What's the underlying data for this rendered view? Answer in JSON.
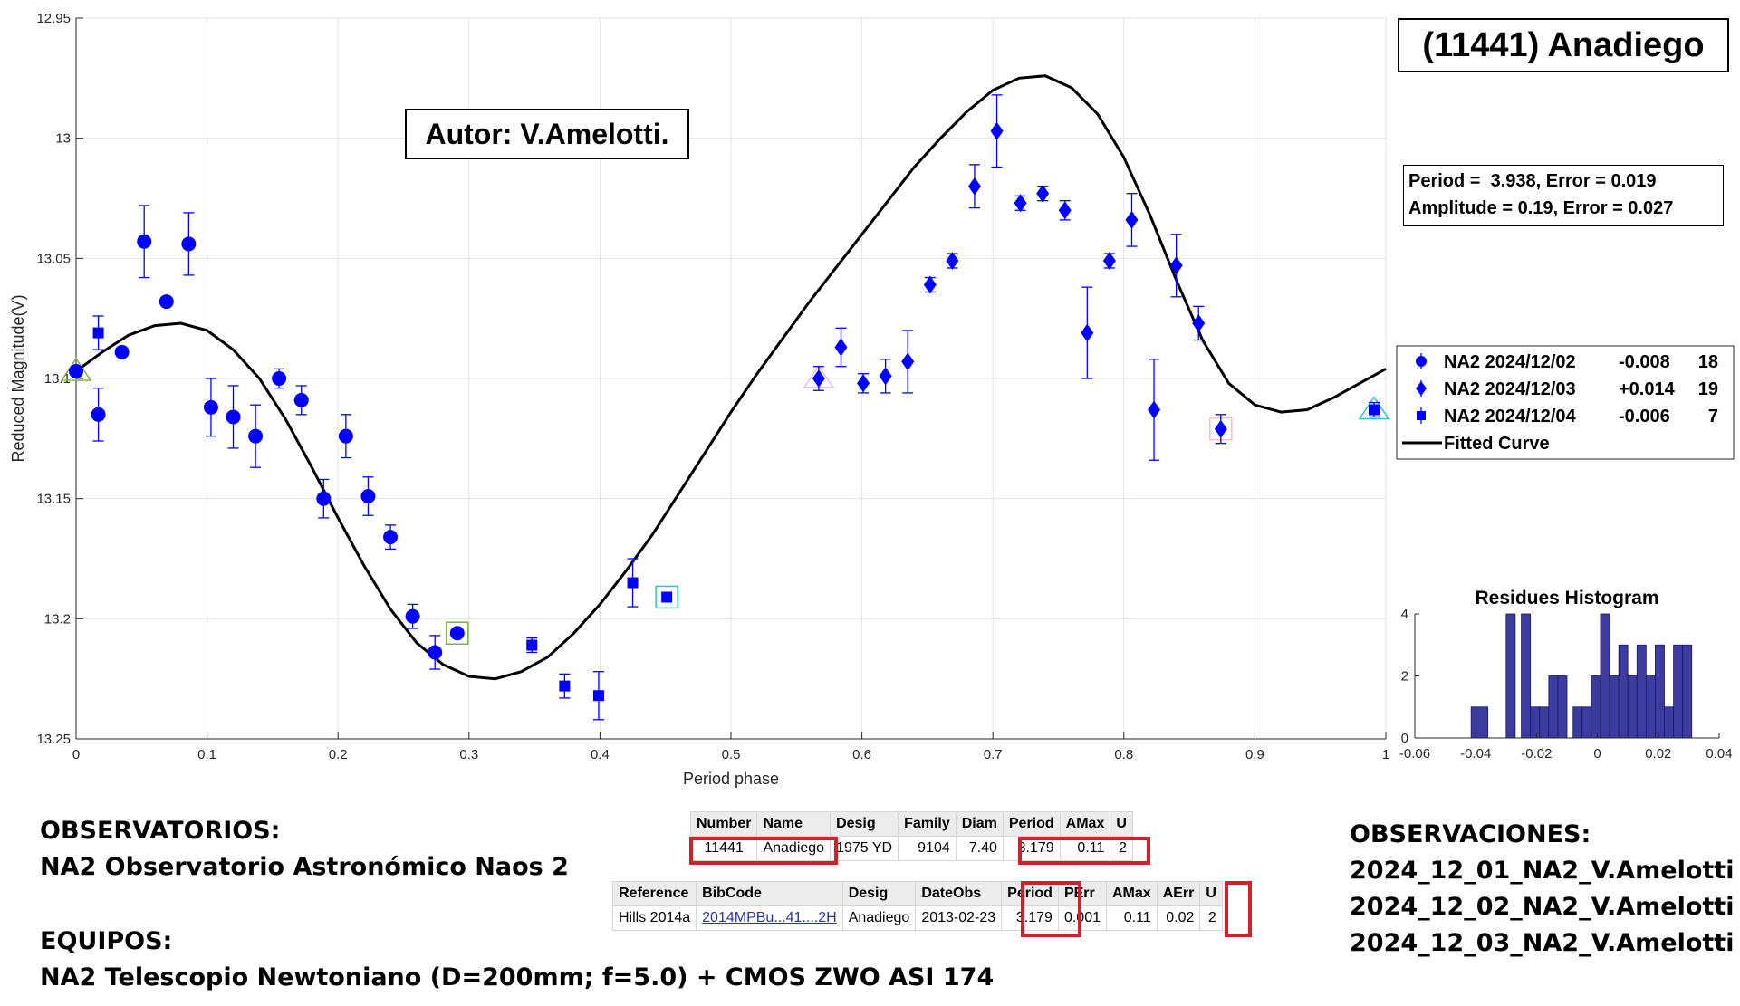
{
  "chart_data": [
    {
      "type": "scatter",
      "title": "",
      "xlabel": "Period phase",
      "ylabel": "Reduced Magnitude(V)",
      "xlim": [
        0,
        1
      ],
      "ylim": [
        13.25,
        12.95
      ],
      "y_reversed": true,
      "xticks": [
        "0",
        "0.1",
        "0.2",
        "0.3",
        "0.4",
        "0.5",
        "0.6",
        "0.7",
        "0.8",
        "0.9",
        "1"
      ],
      "yticks": [
        "12.95",
        "13",
        "13.05",
        "13.1",
        "13.15",
        "13.2",
        "13.25"
      ],
      "grid": true,
      "series": [
        {
          "name": "NA2 2024/12/02",
          "offset": "-0.008",
          "count": "18",
          "marker": "circle",
          "color": "#0000ff",
          "x": [
            0.0,
            0.017,
            0.035,
            0.052,
            0.069,
            0.086,
            0.103,
            0.12,
            0.137,
            0.155,
            0.172,
            0.189,
            0.206,
            0.223,
            0.24,
            0.257,
            0.274,
            0.291
          ],
          "y": [
            13.097,
            13.115,
            13.089,
            13.043,
            13.068,
            13.044,
            13.112,
            13.116,
            13.124,
            13.1,
            13.109,
            13.15,
            13.124,
            13.149,
            13.166,
            13.199,
            13.214,
            13.206
          ],
          "err": [
            0.0,
            0.011,
            0.0,
            0.015,
            0.0,
            0.013,
            0.012,
            0.013,
            0.013,
            0.004,
            0.006,
            0.008,
            0.009,
            0.008,
            0.005,
            0.005,
            0.007,
            0.0
          ]
        },
        {
          "name": "NA2 2024/12/03",
          "offset": "+0.014",
          "count": "19",
          "marker": "diamond",
          "color": "#0000ff",
          "x": [
            0.567,
            0.584,
            0.601,
            0.618,
            0.635,
            0.652,
            0.669,
            0.686,
            0.703,
            0.721,
            0.738,
            0.755,
            0.772,
            0.789,
            0.806,
            0.823,
            0.84,
            0.857,
            0.874
          ],
          "y": [
            13.1,
            13.087,
            13.102,
            13.099,
            13.093,
            13.061,
            13.051,
            13.02,
            12.997,
            13.027,
            13.023,
            13.03,
            13.081,
            13.051,
            13.034,
            13.113,
            13.053,
            13.077,
            13.121
          ],
          "err": [
            0.005,
            0.008,
            0.004,
            0.007,
            0.013,
            0.003,
            0.003,
            0.009,
            0.015,
            0.003,
            0.003,
            0.004,
            0.019,
            0.003,
            0.011,
            0.021,
            0.013,
            0.007,
            0.006
          ]
        },
        {
          "name": "NA2 2024/12/04",
          "offset": "-0.006",
          "count": "7",
          "marker": "square",
          "color": "#0000ff",
          "x": [
            0.017,
            0.348,
            0.373,
            0.399,
            0.425,
            0.451,
            0.991
          ],
          "y": [
            13.081,
            13.211,
            13.228,
            13.232,
            13.185,
            13.191,
            13.113
          ],
          "err": [
            0.007,
            0.003,
            0.005,
            0.01,
            0.01,
            0.0,
            0.003
          ]
        }
      ],
      "fitted_curve": {
        "name": "Fitted Curve",
        "color": "#000000",
        "x": [
          0,
          0.02,
          0.04,
          0.06,
          0.08,
          0.1,
          0.12,
          0.14,
          0.16,
          0.18,
          0.2,
          0.22,
          0.24,
          0.26,
          0.28,
          0.3,
          0.32,
          0.34,
          0.36,
          0.38,
          0.4,
          0.42,
          0.44,
          0.46,
          0.48,
          0.5,
          0.52,
          0.54,
          0.56,
          0.58,
          0.6,
          0.62,
          0.64,
          0.66,
          0.68,
          0.7,
          0.72,
          0.74,
          0.76,
          0.78,
          0.8,
          0.82,
          0.84,
          0.86,
          0.88,
          0.9,
          0.92,
          0.94,
          0.96,
          0.98,
          1
        ],
        "y": [
          13.097,
          13.089,
          13.082,
          13.078,
          13.077,
          13.08,
          13.088,
          13.1,
          13.117,
          13.137,
          13.158,
          13.178,
          13.196,
          13.21,
          13.219,
          13.224,
          13.225,
          13.222,
          13.216,
          13.206,
          13.194,
          13.18,
          13.165,
          13.148,
          13.131,
          13.114,
          13.098,
          13.083,
          13.068,
          13.054,
          13.04,
          13.026,
          13.012,
          13.0,
          12.989,
          12.98,
          12.975,
          12.974,
          12.979,
          12.99,
          13.008,
          13.032,
          13.059,
          13.084,
          13.102,
          13.111,
          13.114,
          13.113,
          13.108,
          13.102,
          13.096
        ]
      },
      "special_markers": [
        {
          "x": 0.0,
          "y": 13.097,
          "shape": "triangle",
          "color": "#7cb342"
        },
        {
          "x": 0.291,
          "y": 13.206,
          "shape": "square",
          "color": "#7cb342"
        },
        {
          "x": 0.451,
          "y": 13.191,
          "shape": "square",
          "color": "#26c6da"
        },
        {
          "x": 0.567,
          "y": 13.1,
          "shape": "triangle",
          "color": "#e1bee7"
        },
        {
          "x": 0.874,
          "y": 13.121,
          "shape": "square",
          "color": "#f8bbd0"
        },
        {
          "x": 0.991,
          "y": 13.113,
          "shape": "triangle",
          "color": "#26c6da"
        }
      ]
    },
    {
      "type": "bar",
      "title": "Residues Histogram",
      "xlim": [
        -0.06,
        0.04
      ],
      "ylim": [
        0,
        4
      ],
      "xticks": [
        "-0.06",
        "-0.04",
        "-0.02",
        "0",
        "0.02",
        "0.04"
      ],
      "yticks": [
        "0",
        "2",
        "4"
      ],
      "bar_color": "#3c3c9e",
      "bins": [
        {
          "x0": -0.0415,
          "x1": -0.036,
          "count": 1
        },
        {
          "x0": -0.03,
          "x1": -0.027,
          "count": 4
        },
        {
          "x0": -0.025,
          "x1": -0.022,
          "count": 4
        },
        {
          "x0": -0.022,
          "x1": -0.019,
          "count": 1
        },
        {
          "x0": -0.019,
          "x1": -0.016,
          "count": 1
        },
        {
          "x0": -0.016,
          "x1": -0.013,
          "count": 2
        },
        {
          "x0": -0.013,
          "x1": -0.01,
          "count": 2
        },
        {
          "x0": -0.008,
          "x1": -0.005,
          "count": 1
        },
        {
          "x0": -0.005,
          "x1": -0.002,
          "count": 1
        },
        {
          "x0": -0.002,
          "x1": 0.001,
          "count": 2
        },
        {
          "x0": 0.001,
          "x1": 0.004,
          "count": 4
        },
        {
          "x0": 0.004,
          "x1": 0.007,
          "count": 2
        },
        {
          "x0": 0.007,
          "x1": 0.01,
          "count": 3
        },
        {
          "x0": 0.01,
          "x1": 0.013,
          "count": 2
        },
        {
          "x0": 0.013,
          "x1": 0.016,
          "count": 3
        },
        {
          "x0": 0.016,
          "x1": 0.019,
          "count": 2
        },
        {
          "x0": 0.019,
          "x1": 0.022,
          "count": 3
        },
        {
          "x0": 0.022,
          "x1": 0.025,
          "count": 1
        },
        {
          "x0": 0.025,
          "x1": 0.028,
          "count": 3
        },
        {
          "x0": 0.028,
          "x1": 0.031,
          "count": 3
        }
      ]
    }
  ],
  "object_title": "(11441) Anadiego",
  "author_label": "Autor: V.Amelotti.",
  "fit_info": {
    "line1": "Period =  3.938, Error = 0.019",
    "line2": "Amplitude = 0.19, Error = 0.027"
  },
  "legend_fit_label": "Fitted Curve",
  "observatorios": {
    "heading": "OBSERVATORIOS:",
    "line": "NA2 Observatorio Astronómico Naos 2"
  },
  "equipos": {
    "heading": "EQUIPOS:",
    "line": "NA2 Telescopio Newtoniano (D=200mm; f=5.0) + CMOS ZWO ASI 174"
  },
  "observaciones": {
    "heading": "OBSERVACIONES:",
    "lines": [
      "2024_12_01_NA2_V.Amelotti",
      "2024_12_02_NA2_V.Amelotti",
      "2024_12_03_NA2_V.Amelotti"
    ]
  },
  "table1": {
    "headers": [
      "Number",
      "Name",
      "Desig",
      "Family",
      "Diam",
      "Period",
      "AMax",
      "U"
    ],
    "row": [
      "11441",
      "Anadiego",
      "1975 YD",
      "9104",
      "7.40",
      "3.179",
      "0.11",
      "2"
    ]
  },
  "table2": {
    "headers": [
      "Reference",
      "BibCode",
      "Desig",
      "DateObs",
      "Period",
      "PErr",
      "AMax",
      "AErr",
      "U"
    ],
    "row": [
      "Hills 2014a",
      "2014MPBu...41....2H",
      "Anadiego",
      "2013-02-23",
      "3.179",
      "0.001",
      "0.11",
      "0.02",
      "2"
    ]
  }
}
